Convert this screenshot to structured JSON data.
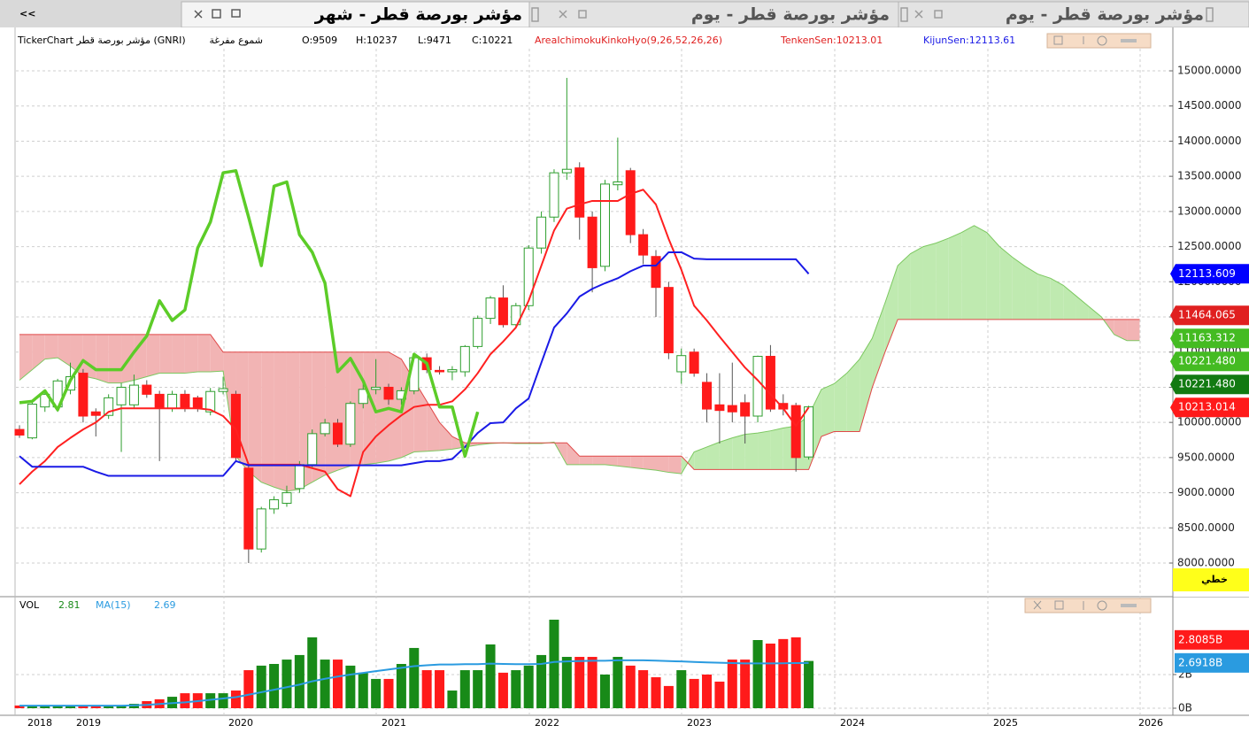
{
  "tabs": {
    "back": "<<",
    "items": [
      "مؤشر بورصة قطر - شهر",
      "مؤشر بورصة قطر - يوم",
      "مؤشر بورصة قطر - يوم"
    ]
  },
  "info": {
    "symbol": "TickerChart مؤشر بورصة قطر (GNRI)",
    "candle_style": "شموع مفرغة",
    "open": "O:9509",
    "high": "H:10237",
    "low": "L:9471",
    "close": "C:10221",
    "indicator": "AreaIchimokuKinkoHyo(9,26,52,26,26)",
    "tenkan": "TenkenSen:10213.01",
    "kijun": "KijunSen:12113.61"
  },
  "chart_mode_label": "خطي",
  "chart_data": [
    {
      "type": "candlestick",
      "up_color": "#2e9e2e",
      "down_color": "#ff1a1a",
      "ylim": [
        7547,
        15315
      ],
      "yticks": [
        {
          "value": 8000,
          "label": "8000.0000"
        },
        {
          "value": 8500,
          "label": "8500.0000"
        },
        {
          "value": 9000,
          "label": "9000.0000"
        },
        {
          "value": 9500,
          "label": "9500.0000"
        },
        {
          "value": 10000,
          "label": "10000.0000"
        },
        {
          "value": 10500,
          "label": "10500.0000"
        },
        {
          "value": 11000,
          "label": "11000.0000"
        },
        {
          "value": 11500,
          "label": "11500.0000"
        },
        {
          "value": 12000,
          "label": "12000.0000"
        },
        {
          "value": 12500,
          "label": "12500.0000"
        },
        {
          "value": 13000,
          "label": "13000.0000"
        },
        {
          "value": 13500,
          "label": "13500.0000"
        },
        {
          "value": 14000,
          "label": "14000.0000"
        },
        {
          "value": 14500,
          "label": "14500.0000"
        },
        {
          "value": 15000,
          "label": "15000.0000"
        }
      ],
      "grid": true,
      "xlabels": [
        "2018",
        "2019",
        "2020",
        "2021",
        "2022",
        "2023",
        "2024",
        "2025",
        "2026"
      ],
      "ohlc": [
        [
          9900,
          9960,
          9780,
          9820
        ],
        [
          9780,
          10300,
          9760,
          10260
        ],
        [
          10220,
          10460,
          10150,
          10400
        ],
        [
          10220,
          10620,
          10150,
          10590
        ],
        [
          10460,
          10850,
          10400,
          10650
        ],
        [
          10700,
          10760,
          10000,
          10090
        ],
        [
          10150,
          10200,
          9800,
          10100
        ],
        [
          10100,
          10400,
          10050,
          10350
        ],
        [
          10250,
          10560,
          9580,
          10500
        ],
        [
          10250,
          10680,
          10200,
          10530
        ],
        [
          10530,
          10600,
          10350,
          10400
        ],
        [
          10400,
          10450,
          9450,
          10200
        ],
        [
          10200,
          10450,
          10150,
          10400
        ],
        [
          10400,
          10460,
          10150,
          10200
        ],
        [
          10350,
          10380,
          10150,
          10200
        ],
        [
          10150,
          10490,
          10100,
          10440
        ],
        [
          10440,
          10650,
          10400,
          10480
        ],
        [
          10400,
          10450,
          9450,
          9500
        ],
        [
          9350,
          9400,
          8000,
          8200
        ],
        [
          8200,
          8800,
          8150,
          8770
        ],
        [
          8770,
          8950,
          8700,
          8900
        ],
        [
          8850,
          9100,
          8800,
          9000
        ],
        [
          9060,
          9450,
          9000,
          9400
        ],
        [
          9400,
          9900,
          9350,
          9840
        ],
        [
          9840,
          10050,
          9800,
          9990
        ],
        [
          9990,
          10050,
          9650,
          9690
        ],
        [
          9690,
          10300,
          9650,
          10270
        ],
        [
          10270,
          10550,
          10200,
          10470
        ],
        [
          10470,
          10900,
          10400,
          10500
        ],
        [
          10500,
          10550,
          10250,
          10330
        ],
        [
          10330,
          10500,
          10250,
          10450
        ],
        [
          10450,
          10950,
          10400,
          10920
        ],
        [
          10920,
          10980,
          10700,
          10750
        ],
        [
          10740,
          10800,
          10680,
          10720
        ],
        [
          10720,
          10800,
          10600,
          10750
        ],
        [
          10720,
          11100,
          10650,
          11080
        ],
        [
          11080,
          11520,
          11050,
          11480
        ],
        [
          11480,
          11800,
          11400,
          11770
        ],
        [
          11770,
          11950,
          11350,
          11390
        ],
        [
          11390,
          11700,
          11350,
          11660
        ],
        [
          11660,
          12520,
          11600,
          12480
        ],
        [
          12480,
          13000,
          12400,
          12920
        ],
        [
          12920,
          13600,
          12850,
          13550
        ],
        [
          13550,
          14900,
          13450,
          13600
        ],
        [
          13620,
          13700,
          12600,
          12920
        ],
        [
          12920,
          13000,
          11850,
          12200
        ],
        [
          12220,
          13450,
          12150,
          13390
        ],
        [
          13380,
          14050,
          13300,
          13420
        ],
        [
          13580,
          13620,
          12550,
          12670
        ],
        [
          12670,
          12750,
          12250,
          12380
        ],
        [
          12360,
          12450,
          11500,
          11920
        ],
        [
          11920,
          12000,
          10900,
          10990
        ],
        [
          10720,
          11050,
          10550,
          10950
        ],
        [
          11000,
          11050,
          10650,
          10700
        ],
        [
          10570,
          10700,
          10000,
          10190
        ],
        [
          10250,
          10700,
          9700,
          10170
        ],
        [
          10240,
          10850,
          10000,
          10150
        ],
        [
          10280,
          10400,
          9700,
          10090
        ],
        [
          10090,
          10950,
          10000,
          10940
        ],
        [
          10940,
          11100,
          10150,
          10190
        ],
        [
          10270,
          10400,
          10100,
          10190
        ],
        [
          10240,
          10280,
          9300,
          9500
        ],
        [
          9509,
          10237,
          9471,
          10221
        ]
      ],
      "series": [
        {
          "color": "#ff2020",
          "values": [
            9120,
            9300,
            9450,
            9650,
            9780,
            9900,
            10000,
            10150,
            10200,
            10200,
            10200,
            10200,
            10200,
            10200,
            10200,
            10180,
            10090,
            9900,
            9400,
            9400,
            9400,
            9400,
            9400,
            9350,
            9300,
            9050,
            8950,
            9580,
            9800,
            9960,
            10100,
            10220,
            10250,
            10250,
            10300,
            10470,
            10700,
            10970,
            11150,
            11350,
            11730,
            12230,
            12730,
            13040,
            13100,
            13150,
            13150,
            13150,
            13250,
            13310,
            13100,
            12610,
            12170,
            11660,
            11450,
            11220,
            11000,
            10780,
            10600,
            10400,
            10200,
            9950,
            10213.01
          ]
        },
        {
          "color": "#1a1ae6",
          "values": [
            9520,
            9370,
            9370,
            9370,
            9370,
            9370,
            9300,
            9240,
            9240,
            9240,
            9240,
            9240,
            9240,
            9240,
            9240,
            9240,
            9240,
            9450,
            9390,
            9390,
            9390,
            9390,
            9390,
            9390,
            9390,
            9390,
            9390,
            9390,
            9390,
            9390,
            9390,
            9420,
            9450,
            9450,
            9480,
            9650,
            9850,
            9990,
            10000,
            10200,
            10340,
            10850,
            11350,
            11550,
            11790,
            11900,
            11980,
            12050,
            12150,
            12230,
            12230,
            12420,
            12420,
            12330,
            12320,
            12320,
            12320,
            12320,
            12320,
            12320,
            12320,
            12320,
            12113.61
          ]
        },
        {
          "color": "#5ccc28",
          "values": [
            10280,
            10300,
            10450,
            10180,
            10600,
            10880,
            10750,
            10750,
            10750,
            11000,
            11230,
            11730,
            11450,
            11600,
            12480,
            12850,
            13550,
            13580,
            12920,
            12230,
            13360,
            13420,
            12670,
            12420,
            11980,
            10720,
            10910,
            10590,
            10150,
            10200,
            10150,
            10970,
            10840,
            10220,
            10220,
            9520,
            10150
          ]
        }
      ],
      "cloud": {
        "up_color": "#bfeab0",
        "down_color": "#f2b4b4",
        "line_a_color": "#7cc860",
        "line_b_color": "#e04848",
        "span_a": [
          10600,
          10750,
          10900,
          10920,
          10800,
          10660,
          10620,
          10560,
          10560,
          10600,
          10650,
          10700,
          10700,
          10700,
          10720,
          10720,
          10730,
          9520,
          9300,
          9150,
          9080,
          9020,
          9050,
          9150,
          9250,
          9320,
          9380,
          9400,
          9420,
          9450,
          9500,
          9580,
          9590,
          9600,
          9620,
          9650,
          9680,
          9700,
          9710,
          9700,
          9700,
          9700,
          9720,
          9400,
          9400,
          9400,
          9400,
          9380,
          9360,
          9340,
          9320,
          9290,
          9270,
          9580,
          9650,
          9720,
          9780,
          9830,
          9850,
          9880,
          9920,
          9950,
          10100,
          10470,
          10550,
          10700,
          10900,
          11200,
          11700,
          12230,
          12400,
          12500,
          12550,
          12620,
          12700,
          12800,
          12700,
          12500,
          12350,
          12220,
          12110,
          12050,
          11950,
          11800,
          11650,
          11500,
          11250,
          11163.31,
          11163.31
        ],
        "span_b": [
          11250,
          11250,
          11250,
          11250,
          11250,
          11250,
          11250,
          11250,
          11250,
          11250,
          11250,
          11250,
          11250,
          11250,
          11250,
          11250,
          11000,
          11000,
          11000,
          11000,
          11000,
          11000,
          11000,
          11000,
          11000,
          11000,
          11000,
          11000,
          11000,
          11000,
          10900,
          10600,
          10300,
          10000,
          9800,
          9710,
          9710,
          9710,
          9710,
          9710,
          9710,
          9710,
          9710,
          9710,
          9520,
          9520,
          9520,
          9520,
          9520,
          9520,
          9520,
          9520,
          9520,
          9330,
          9330,
          9330,
          9330,
          9330,
          9330,
          9330,
          9330,
          9330,
          9330,
          9800,
          9870,
          9870,
          9870,
          10500,
          11000,
          11464.06,
          11464.06,
          11464.06,
          11464.06,
          11464.06,
          11464.06,
          11464.06,
          11464.06,
          11464.06,
          11464.06,
          11464.06,
          11464.06,
          11464.06,
          11464.06,
          11464.06,
          11464.06,
          11464.06,
          11464.06,
          11464.06,
          11464.06
        ]
      },
      "price_labels": [
        {
          "value": 12113.609,
          "label": "12113.609",
          "color": "#0000ff"
        },
        {
          "value": 11464.065,
          "label": "11464.065",
          "color": "#e02020"
        },
        {
          "value": 11163.312,
          "label": "11163.312",
          "color": "#44bb22"
        },
        {
          "value": 10221.4805,
          "label": "10221.480",
          "color": "#44bb22"
        },
        {
          "value": 10221.4805,
          "label": "10221.480",
          "color": "#127a12"
        },
        {
          "value": 10213.014,
          "label": "10213.014",
          "color": "#ff1a1a"
        }
      ]
    },
    {
      "type": "bar",
      "label": "VOL",
      "vol_value": 2.81,
      "ma_label": "MA(15)",
      "ma_value": 2.69,
      "up_color": "#188a18",
      "down_color": "#ff1a1a",
      "ma_color": "#2a9be0",
      "ylim": [
        0,
        6.47
      ],
      "yticks": [
        {
          "value": 0,
          "label": "0B"
        },
        {
          "value": 2,
          "label": "2B"
        }
      ],
      "values": [
        0.16,
        0.16,
        0.16,
        0.16,
        0.16,
        0.16,
        0.16,
        0.16,
        0.16,
        0.26,
        0.42,
        0.53,
        0.68,
        0.89,
        0.89,
        0.89,
        0.89,
        1.05,
        2.26,
        2.53,
        2.63,
        2.89,
        3.16,
        4.21,
        2.89,
        2.89,
        2.53,
        2.11,
        1.74,
        1.74,
        2.63,
        3.58,
        2.26,
        2.26,
        1.05,
        2.26,
        2.26,
        3.79,
        2.11,
        2.26,
        2.53,
        3.16,
        5.26,
        3.05,
        3.05,
        3.05,
        2.0,
        3.05,
        2.53,
        2.26,
        1.84,
        1.32,
        2.26,
        1.74,
        2.0,
        1.58,
        2.89,
        2.89,
        4.05,
        3.84,
        4.11,
        4.21,
        2.8085
      ],
      "ma": [
        0.15,
        0.15,
        0.15,
        0.15,
        0.15,
        0.15,
        0.15,
        0.15,
        0.15,
        0.17,
        0.2,
        0.25,
        0.3,
        0.35,
        0.42,
        0.5,
        0.58,
        0.66,
        0.8,
        0.95,
        1.1,
        1.25,
        1.4,
        1.6,
        1.75,
        1.88,
        2.0,
        2.1,
        2.2,
        2.3,
        2.4,
        2.5,
        2.55,
        2.6,
        2.6,
        2.62,
        2.62,
        2.65,
        2.63,
        2.62,
        2.62,
        2.63,
        2.75,
        2.78,
        2.8,
        2.82,
        2.82,
        2.85,
        2.85,
        2.85,
        2.83,
        2.8,
        2.78,
        2.75,
        2.72,
        2.7,
        2.68,
        2.66,
        2.66,
        2.66,
        2.67,
        2.68,
        2.69
      ],
      "last_labels": [
        {
          "value": 2.8085,
          "label": "2.8085B",
          "color": "#ff1a1a"
        },
        {
          "value": 2.6918,
          "label": "2.6918B",
          "color": "#2a9be0"
        }
      ]
    }
  ]
}
